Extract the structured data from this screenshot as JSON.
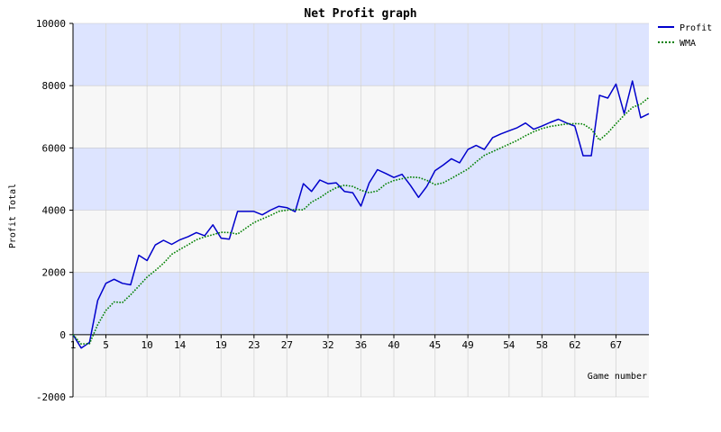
{
  "chart_data": {
    "type": "line",
    "title": "Net Profit graph",
    "xlabel": "Game number",
    "ylabel": "Profit Total",
    "xlim": [
      1,
      71
    ],
    "ylim": [
      -2000,
      10000
    ],
    "x_ticks": [
      1,
      5,
      10,
      14,
      19,
      23,
      27,
      32,
      36,
      40,
      45,
      49,
      54,
      58,
      62,
      67
    ],
    "y_ticks": [
      -2000,
      0,
      2000,
      4000,
      6000,
      8000,
      10000
    ],
    "y_tick_labels": [
      "-2000",
      "0",
      "2000",
      "4000",
      "6000",
      "8000",
      "10000"
    ],
    "grid": true,
    "legend_position": "top-right",
    "band_colors": [
      "#dde4ff",
      "#f7f7f7"
    ],
    "x": [
      1,
      2,
      3,
      4,
      5,
      6,
      7,
      8,
      9,
      10,
      11,
      12,
      13,
      14,
      15,
      16,
      17,
      18,
      19,
      20,
      21,
      22,
      23,
      24,
      25,
      26,
      27,
      28,
      29,
      30,
      31,
      32,
      33,
      34,
      35,
      36,
      37,
      38,
      39,
      40,
      41,
      42,
      43,
      44,
      45,
      46,
      47,
      48,
      49,
      50,
      51,
      52,
      53,
      54,
      55,
      56,
      57,
      58,
      59,
      60,
      61,
      62,
      63,
      64,
      65,
      66,
      67,
      68,
      69,
      70,
      71
    ],
    "series": [
      {
        "name": "Profit",
        "color": "#0000cc",
        "style": "solid",
        "values": [
          0,
          -430,
          -250,
          1100,
          1650,
          1780,
          1650,
          1600,
          2550,
          2380,
          2880,
          3030,
          2900,
          3050,
          3150,
          3280,
          3180,
          3530,
          3100,
          3070,
          3960,
          3960,
          3960,
          3850,
          4000,
          4120,
          4080,
          3950,
          4850,
          4600,
          4970,
          4850,
          4880,
          4600,
          4560,
          4130,
          4870,
          5300,
          5180,
          5050,
          5150,
          4800,
          4410,
          4760,
          5270,
          5450,
          5650,
          5520,
          5950,
          6080,
          5950,
          6330,
          6450,
          6550,
          6650,
          6800,
          6600,
          6700,
          6820,
          6920,
          6800,
          6700,
          5750,
          5750,
          7690,
          7600,
          8050,
          7100,
          8150,
          6970,
          7100
        ]
      },
      {
        "name": "WMA",
        "color": "#008000",
        "style": "dotted",
        "values": [
          0,
          -300,
          -290,
          320,
          780,
          1050,
          1030,
          1280,
          1560,
          1850,
          2060,
          2290,
          2580,
          2740,
          2890,
          3050,
          3140,
          3210,
          3290,
          3280,
          3230,
          3420,
          3600,
          3720,
          3830,
          3960,
          4000,
          4020,
          4010,
          4260,
          4400,
          4580,
          4720,
          4800,
          4760,
          4640,
          4560,
          4620,
          4840,
          4950,
          5010,
          5060,
          5050,
          4960,
          4820,
          4880,
          5020,
          5170,
          5320,
          5550,
          5760,
          5880,
          6000,
          6120,
          6240,
          6390,
          6520,
          6620,
          6690,
          6730,
          6770,
          6780,
          6770,
          6600,
          6250,
          6480,
          6780,
          7050,
          7300,
          7410,
          7620
        ]
      }
    ]
  }
}
